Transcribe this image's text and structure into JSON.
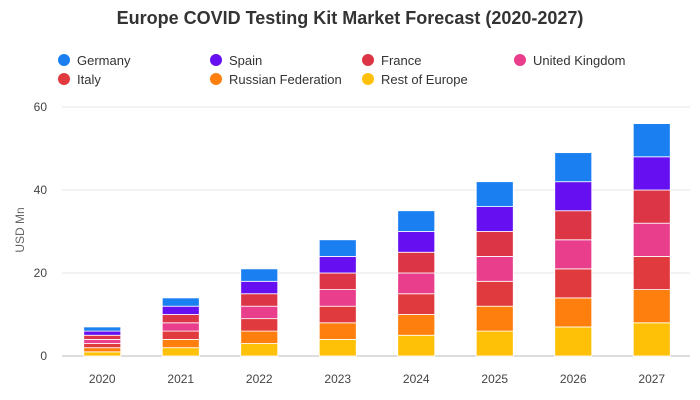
{
  "chart_data": {
    "type": "bar",
    "stacked": true,
    "title": "Europe COVID Testing Kit Market Forecast (2020-2027)",
    "xlabel": "",
    "ylabel": "USD Mn",
    "ylim": [
      0,
      60
    ],
    "yticks": [
      0,
      20,
      40,
      60
    ],
    "grid": true,
    "legend_position": "top",
    "categories": [
      "2020",
      "2021",
      "2022",
      "2023",
      "2024",
      "2025",
      "2026",
      "2027"
    ],
    "series": [
      {
        "name": "Rest of Europe",
        "color": "#ffc107",
        "values": [
          1,
          2,
          3,
          4,
          5,
          6,
          7,
          8
        ]
      },
      {
        "name": "Russian Federation",
        "color": "#ff7f0e",
        "values": [
          1,
          2,
          3,
          4,
          5,
          6,
          7,
          8
        ]
      },
      {
        "name": "Italy",
        "color": "#e0393e",
        "values": [
          1,
          2,
          3,
          4,
          5,
          6,
          7,
          8
        ]
      },
      {
        "name": "United Kingdom",
        "color": "#e83e8c",
        "values": [
          1,
          2,
          3,
          4,
          5,
          6,
          7,
          8
        ]
      },
      {
        "name": "France",
        "color": "#dc3545",
        "values": [
          1,
          2,
          3,
          4,
          5,
          6,
          7,
          8
        ]
      },
      {
        "name": "Spain",
        "color": "#6610f2",
        "values": [
          1,
          2,
          3,
          4,
          5,
          6,
          7,
          8
        ]
      },
      {
        "name": "Germany",
        "color": "#1a7ff0",
        "values": [
          1,
          2,
          3,
          4,
          5,
          6,
          7,
          8
        ]
      }
    ],
    "legend_order": [
      "Germany",
      "Spain",
      "France",
      "United Kingdom",
      "Italy",
      "Russian Federation",
      "Rest of Europe"
    ]
  }
}
